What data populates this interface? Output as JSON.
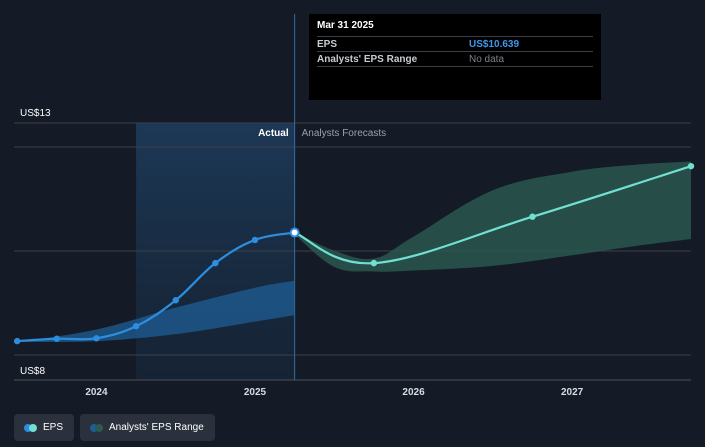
{
  "colors": {
    "background": "#151b26",
    "eps_actual": "#2d8ee0",
    "eps_forecast": "#6fe0d3",
    "range_actual": "#1f5d94",
    "range_forecast": "#2b5a51",
    "actual_zone": "#1b3450",
    "grid": "#3a3f4a"
  },
  "chart_data": {
    "type": "line",
    "y_axis": {
      "min": 8,
      "max": 13,
      "top_label": "US$13",
      "bottom_label": "US$8"
    },
    "x_axis": {
      "min": 2023.48,
      "max": 2027.75,
      "ticks": [
        "2024",
        "2025",
        "2026",
        "2027"
      ],
      "tick_values": [
        2024,
        2025,
        2026,
        2027
      ]
    },
    "zone_labels": {
      "actual": "Actual",
      "forecast": "Analysts Forecasts"
    },
    "actual_zone": {
      "start": 2024.25,
      "end": 2025.25
    },
    "grid": true,
    "series": [
      {
        "name": "EPS",
        "segment": "actual",
        "x": [
          2023.5,
          2023.75,
          2024.0,
          2024.25,
          2024.5,
          2024.75,
          2025.0,
          2025.25
        ],
        "y": [
          8.3,
          8.35,
          8.36,
          8.62,
          9.18,
          9.98,
          10.48,
          10.639
        ]
      },
      {
        "name": "EPS",
        "segment": "forecast",
        "x": [
          2025.25,
          2025.75,
          2026.75,
          2027.75
        ],
        "y": [
          10.639,
          9.98,
          10.98,
          12.07
        ]
      }
    ],
    "range": {
      "name": "Analysts' EPS Range",
      "actual": {
        "x": [
          2023.5,
          2024.0,
          2024.5,
          2025.0,
          2025.25
        ],
        "upper": [
          8.28,
          8.55,
          9.02,
          9.45,
          9.6
        ],
        "lower": [
          8.28,
          8.3,
          8.45,
          8.72,
          8.86
        ]
      },
      "forecast": {
        "x": [
          2025.25,
          2025.5,
          2025.75,
          2026.0,
          2026.5,
          2027.0,
          2027.4,
          2027.75
        ],
        "upper": [
          10.65,
          10.25,
          10.08,
          10.55,
          11.55,
          11.95,
          12.1,
          12.17
        ],
        "lower": [
          10.6,
          9.9,
          9.8,
          9.82,
          9.92,
          10.15,
          10.35,
          10.5
        ]
      }
    },
    "highlight": {
      "x": 2025.25,
      "y": 10.639
    }
  },
  "tooltip": {
    "date": "Mar 31 2025",
    "rows": [
      {
        "label": "EPS",
        "value": "US$10.639"
      },
      {
        "label": "Analysts' EPS Range",
        "value": "No data"
      }
    ]
  },
  "legend": [
    {
      "label": "EPS",
      "colors": [
        "#2d8ee0",
        "#6fe0d3"
      ]
    },
    {
      "label": "Analysts' EPS Range",
      "colors": [
        "#1f5d94",
        "#2b5a51"
      ]
    }
  ]
}
